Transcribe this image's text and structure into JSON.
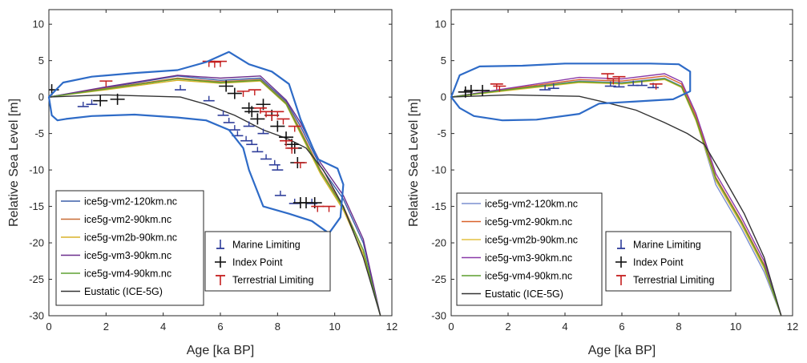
{
  "chart_data": [
    {
      "type": "line",
      "xlabel": "Age [ka BP]",
      "ylabel": "Relative Sea Level [m]",
      "xlim": [
        0,
        12
      ],
      "ylim": [
        -30,
        12
      ],
      "xticks": [
        "0",
        "2",
        "4",
        "6",
        "8",
        "10",
        "12"
      ],
      "yticks": [
        "10",
        "5",
        "0",
        "-5",
        "-10",
        "-15",
        "-20",
        "-25",
        "-30"
      ],
      "grid": false,
      "legend_placement": "bottom-left",
      "series": [
        {
          "name": "ice5g-vm2-120km.nc",
          "color": "#3b5fa8",
          "x": [
            0,
            2,
            4.5,
            6,
            7.4,
            8.3,
            8.8,
            9.5,
            10.3,
            11,
            11.6
          ],
          "y": [
            0,
            1.3,
            2.9,
            2.3,
            2.6,
            -0.6,
            -4,
            -9.5,
            -14,
            -20,
            -30
          ]
        },
        {
          "name": "ice5g-vm2-90km.nc",
          "color": "#c86b35",
          "x": [
            0,
            2,
            4.5,
            6,
            7.4,
            8.3,
            8.8,
            9.5,
            10.3,
            11,
            11.6
          ],
          "y": [
            0,
            1.2,
            2.6,
            2.1,
            2.4,
            -0.8,
            -4.5,
            -10,
            -15,
            -21,
            -30
          ]
        },
        {
          "name": "ice5g-vm2b-90km.nc",
          "color": "#d9b22a",
          "x": [
            0,
            2,
            4.5,
            6,
            7.4,
            8.3,
            8.8,
            9.5,
            10.3,
            11,
            11.6
          ],
          "y": [
            0,
            1.0,
            2.3,
            1.9,
            2.2,
            -1,
            -5,
            -10.5,
            -15.5,
            -21.5,
            -30
          ]
        },
        {
          "name": "ice5g-vm3-90km.nc",
          "color": "#6b2d8c",
          "x": [
            0,
            2,
            4.5,
            6,
            7.4,
            8.3,
            8.8,
            9.5,
            10.3,
            11,
            11.6
          ],
          "y": [
            0,
            1.4,
            3.0,
            2.6,
            2.9,
            -0.4,
            -3.5,
            -9,
            -13.5,
            -19.5,
            -30
          ]
        },
        {
          "name": "ice5g-vm4-90km.nc",
          "color": "#5ea234",
          "x": [
            0,
            2,
            4.5,
            6,
            7.4,
            8.3,
            8.8,
            9.5,
            10.3,
            11,
            11.6
          ],
          "y": [
            0,
            1.1,
            2.5,
            2.0,
            2.3,
            -0.9,
            -4.8,
            -10.2,
            -15.2,
            -21,
            -30
          ]
        },
        {
          "name": "Eustatic (ICE-5G)",
          "color": "#333333",
          "x": [
            0,
            2,
            4.6,
            5.5,
            6.5,
            7.5,
            8.4,
            9,
            9.6,
            10.3,
            11,
            11.6
          ],
          "y": [
            0,
            0.3,
            0,
            -1,
            -2.5,
            -4.5,
            -5.8,
            -7,
            -10,
            -15,
            -22,
            -30
          ]
        }
      ],
      "observations": [
        {
          "name": "Marine Limiting",
          "color": "#2e3d9a",
          "points": [
            [
              1.2,
              -1.3
            ],
            [
              1.5,
              -1.0
            ],
            [
              4.6,
              1.0
            ],
            [
              5.6,
              -0.5
            ],
            [
              6.1,
              -2.5
            ],
            [
              6.3,
              -3.5
            ],
            [
              6.5,
              -4.5
            ],
            [
              6.6,
              -5.3
            ],
            [
              6.9,
              -6
            ],
            [
              7.1,
              -6.5
            ],
            [
              7.3,
              -7.5
            ],
            [
              7.6,
              -8.5
            ],
            [
              7.9,
              -9.3
            ],
            [
              8.0,
              -10
            ],
            [
              7.0,
              -4
            ],
            [
              7.5,
              -5
            ],
            [
              8.1,
              -13.5
            ],
            [
              8.6,
              -14.6
            ],
            [
              9.2,
              -14.6
            ]
          ]
        },
        {
          "name": "Index Point",
          "color": "#111111",
          "points": [
            [
              0.1,
              1.0
            ],
            [
              1.8,
              -0.5
            ],
            [
              2.4,
              -0.3
            ],
            [
              6.2,
              1.5
            ],
            [
              6.5,
              0.5
            ],
            [
              7.0,
              -1.5
            ],
            [
              7.1,
              -2.0
            ],
            [
              7.3,
              -3.0
            ],
            [
              7.5,
              -1.0
            ],
            [
              7.8,
              -2.5
            ],
            [
              8.0,
              -4.0
            ],
            [
              8.3,
              -5.5
            ],
            [
              8.5,
              -6.5
            ],
            [
              8.6,
              -7.0
            ],
            [
              8.7,
              -9.0
            ],
            [
              8.8,
              -14.5
            ],
            [
              9.0,
              -14.5
            ],
            [
              9.3,
              -14.5
            ]
          ]
        },
        {
          "name": "Terrestrial Limiting",
          "color": "#c41e1e",
          "points": [
            [
              2.0,
              2.2
            ],
            [
              5.6,
              4.9
            ],
            [
              5.8,
              4.8
            ],
            [
              6.0,
              4.9
            ],
            [
              6.8,
              0.8
            ],
            [
              7.2,
              1.0
            ],
            [
              7.4,
              -1.5
            ],
            [
              7.6,
              -2.0
            ],
            [
              7.8,
              -2.5
            ],
            [
              8.0,
              -2.0
            ],
            [
              8.2,
              -3.0
            ],
            [
              8.3,
              -6.0
            ],
            [
              8.5,
              -7.0
            ],
            [
              8.6,
              -4.0
            ],
            [
              8.8,
              -9.0
            ],
            [
              9.4,
              -15.0
            ],
            [
              9.8,
              -15.0
            ]
          ]
        }
      ],
      "outline_color": "#2e6bc7"
    },
    {
      "type": "line",
      "xlabel": "Age [ka BP]",
      "ylabel": "Relative Sea Level [m]",
      "xlim": [
        0,
        12
      ],
      "ylim": [
        -30,
        12
      ],
      "xticks": [
        "0",
        "2",
        "4",
        "6",
        "8",
        "10",
        "12"
      ],
      "yticks": [
        "10",
        "5",
        "0",
        "-5",
        "-10",
        "-15",
        "-20",
        "-25",
        "-30"
      ],
      "grid": false,
      "legend_placement": "bottom-left",
      "series": [
        {
          "name": "ice5g-vm2-120km.nc",
          "color": "#7b8fd0",
          "x": [
            0,
            2,
            4.5,
            6,
            7.5,
            8.1,
            8.6,
            9.3,
            10.2,
            11,
            11.6
          ],
          "y": [
            0,
            1.0,
            2.2,
            2.0,
            2.6,
            1.5,
            -3,
            -12,
            -18,
            -24,
            -30
          ]
        },
        {
          "name": "ice5g-vm2-90km.nc",
          "color": "#d9622b",
          "x": [
            0,
            2,
            4.5,
            6,
            7.5,
            8.1,
            8.6,
            9.3,
            10.2,
            11,
            11.6
          ],
          "y": [
            0,
            1.1,
            2.4,
            2.2,
            2.9,
            1.8,
            -2.6,
            -11,
            -17,
            -23,
            -30
          ]
        },
        {
          "name": "ice5g-vm2b-90km.nc",
          "color": "#e3c042",
          "x": [
            0,
            2,
            4.5,
            6,
            7.5,
            8.1,
            8.6,
            9.3,
            10.2,
            11,
            11.6
          ],
          "y": [
            0,
            0.9,
            2.0,
            1.8,
            2.4,
            1.3,
            -3.2,
            -11.5,
            -17.5,
            -23.5,
            -30
          ]
        },
        {
          "name": "ice5g-vm3-90km.nc",
          "color": "#8a3aa8",
          "x": [
            0,
            2,
            4.5,
            6,
            7.5,
            8.1,
            8.6,
            9.3,
            10.2,
            11,
            11.6
          ],
          "y": [
            0,
            1.2,
            2.7,
            2.5,
            3.2,
            2.1,
            -2.2,
            -10.5,
            -16.5,
            -22.5,
            -30
          ]
        },
        {
          "name": "ice5g-vm4-90km.nc",
          "color": "#5b9e2d",
          "x": [
            0,
            2,
            4.5,
            6,
            7.5,
            8.1,
            8.6,
            9.3,
            10.2,
            11,
            11.6
          ],
          "y": [
            0,
            1.0,
            2.1,
            1.9,
            2.5,
            1.4,
            -3,
            -11.2,
            -17.2,
            -23.2,
            -30
          ]
        },
        {
          "name": "Eustatic (ICE-5G)",
          "color": "#333333",
          "x": [
            0,
            2,
            4.5,
            5.5,
            6.5,
            7.5,
            8.3,
            8.9,
            9.5,
            10.3,
            11,
            11.6
          ],
          "y": [
            0,
            0.3,
            0.1,
            -0.8,
            -1.8,
            -3.5,
            -5,
            -6.5,
            -10.5,
            -16,
            -22,
            -30
          ]
        }
      ],
      "observations": [
        {
          "name": "Marine Limiting",
          "color": "#2e3d9a",
          "points": [
            [
              3.3,
              1.0
            ],
            [
              3.6,
              1.2
            ],
            [
              5.6,
              1.5
            ],
            [
              5.9,
              1.4
            ],
            [
              6.4,
              1.6
            ],
            [
              6.7,
              1.6
            ],
            [
              7.1,
              1.3
            ]
          ]
        },
        {
          "name": "Index Point",
          "color": "#111111",
          "points": [
            [
              0.5,
              0.7
            ],
            [
              0.7,
              0.9
            ],
            [
              1.1,
              0.9
            ]
          ]
        },
        {
          "name": "Terrestrial Limiting",
          "color": "#c41e1e",
          "points": [
            [
              1.6,
              1.8
            ],
            [
              1.7,
              1.5
            ],
            [
              5.5,
              3.2
            ],
            [
              5.7,
              2.5
            ],
            [
              5.9,
              2.8
            ],
            [
              7.2,
              1.8
            ]
          ]
        }
      ],
      "outline_color": "#2e6bc7"
    }
  ]
}
